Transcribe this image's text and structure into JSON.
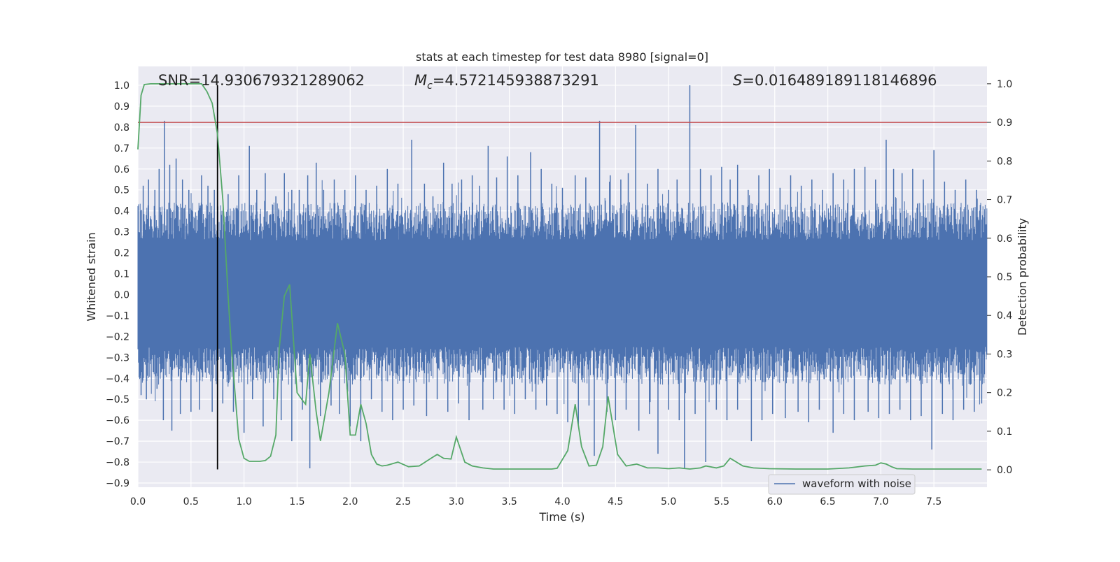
{
  "chart_data": {
    "type": "line",
    "title": "stats at each timestep for test data 8980 [signal=0]",
    "xlabel": "Time (s)",
    "ylabel_left": "Whitened strain",
    "ylabel_right": "Detection probability",
    "xlim": [
      0,
      8.0
    ],
    "ylim_left": [
      -0.92,
      1.09
    ],
    "ylim_right": [
      -0.045,
      1.045
    ],
    "x_ticks": [
      "0.0",
      "0.5",
      "1.0",
      "1.5",
      "2.0",
      "2.5",
      "3.0",
      "3.5",
      "4.0",
      "4.5",
      "5.0",
      "5.5",
      "6.0",
      "6.5",
      "7.0",
      "7.5"
    ],
    "y_ticks_left": [
      "1.0",
      "0.9",
      "0.8",
      "0.7",
      "0.6",
      "0.5",
      "0.4",
      "0.3",
      "0.2",
      "0.1",
      "0.0",
      "−0.1",
      "−0.2",
      "−0.3",
      "−0.4",
      "−0.5",
      "−0.6",
      "−0.7",
      "−0.8",
      "−0.9"
    ],
    "y_ticks_right": [
      "1.0",
      "0.9",
      "0.8",
      "0.7",
      "0.6",
      "0.5",
      "0.4",
      "0.3",
      "0.2",
      "0.1",
      "0.0"
    ],
    "annotations": {
      "snr": "SNR=14.930679321289062",
      "mc_symbol": "M",
      "mc_sub": "c",
      "mc_value": "=4.572145938873291",
      "s_symbol": "S",
      "s_value": "=0.016489189118146896"
    },
    "threshold": {
      "axis": "right",
      "value": 0.9,
      "color": "#c44e52"
    },
    "marker_time": 0.75,
    "marker_range_left": [
      -0.835,
      1.0
    ],
    "legend": {
      "label": "waveform with noise",
      "placement": "lower right"
    },
    "colors": {
      "waveform": "#4c72b0",
      "probability": "#55a868",
      "marker": "#000000",
      "background": "#eaeaf2",
      "grid": "#ffffff"
    },
    "grid": true,
    "series": [
      {
        "name": "waveform with noise",
        "axis": "left",
        "description_hidden": true,
        "band_upper": 0.44,
        "band_lower": -0.43,
        "spikes": [
          [
            0.05,
            0.52
          ],
          [
            0.1,
            0.55
          ],
          [
            0.16,
            0.5
          ],
          [
            0.2,
            0.6
          ],
          [
            0.25,
            0.83
          ],
          [
            0.3,
            0.62
          ],
          [
            0.36,
            0.65
          ],
          [
            0.42,
            0.55
          ],
          [
            0.48,
            0.5
          ],
          [
            0.6,
            0.57
          ],
          [
            0.66,
            0.52
          ],
          [
            0.72,
            0.5
          ],
          [
            0.85,
            0.48
          ],
          [
            0.95,
            0.57
          ],
          [
            1.05,
            0.71
          ],
          [
            1.12,
            0.5
          ],
          [
            1.2,
            0.58
          ],
          [
            1.3,
            0.47
          ],
          [
            1.38,
            0.58
          ],
          [
            1.45,
            0.5
          ],
          [
            1.52,
            0.5
          ],
          [
            1.6,
            0.57
          ],
          [
            1.68,
            0.63
          ],
          [
            1.75,
            0.5
          ],
          [
            1.85,
            0.55
          ],
          [
            1.95,
            0.5
          ],
          [
            2.05,
            0.57
          ],
          [
            2.15,
            0.5
          ],
          [
            2.25,
            0.52
          ],
          [
            2.35,
            0.6
          ],
          [
            2.45,
            0.53
          ],
          [
            2.58,
            0.74
          ],
          [
            2.7,
            0.53
          ],
          [
            2.78,
            0.47
          ],
          [
            2.88,
            0.63
          ],
          [
            2.96,
            0.53
          ],
          [
            3.05,
            0.55
          ],
          [
            3.15,
            0.57
          ],
          [
            3.22,
            0.52
          ],
          [
            3.3,
            0.71
          ],
          [
            3.38,
            0.56
          ],
          [
            3.48,
            0.66
          ],
          [
            3.58,
            0.57
          ],
          [
            3.7,
            0.68
          ],
          [
            3.8,
            0.6
          ],
          [
            3.9,
            0.53
          ],
          [
            4.0,
            0.51
          ],
          [
            4.12,
            0.57
          ],
          [
            4.22,
            0.56
          ],
          [
            4.35,
            0.83
          ],
          [
            4.45,
            0.57
          ],
          [
            4.55,
            0.55
          ],
          [
            4.62,
            0.58
          ],
          [
            4.69,
            0.81
          ],
          [
            4.8,
            0.53
          ],
          [
            4.9,
            0.6
          ],
          [
            5.0,
            0.5
          ],
          [
            5.08,
            0.55
          ],
          [
            5.2,
            1.0
          ],
          [
            5.3,
            0.6
          ],
          [
            5.4,
            0.57
          ],
          [
            5.5,
            0.61
          ],
          [
            5.58,
            0.55
          ],
          [
            5.65,
            0.62
          ],
          [
            5.75,
            0.5
          ],
          [
            5.85,
            0.57
          ],
          [
            5.95,
            0.6
          ],
          [
            6.05,
            0.51
          ],
          [
            6.15,
            0.57
          ],
          [
            6.25,
            0.52
          ],
          [
            6.35,
            0.55
          ],
          [
            6.45,
            0.5
          ],
          [
            6.55,
            0.58
          ],
          [
            6.65,
            0.55
          ],
          [
            6.75,
            0.6
          ],
          [
            6.85,
            0.61
          ],
          [
            6.95,
            0.55
          ],
          [
            7.05,
            0.74
          ],
          [
            7.12,
            0.6
          ],
          [
            7.2,
            0.58
          ],
          [
            7.3,
            0.6
          ],
          [
            7.4,
            0.55
          ],
          [
            7.5,
            0.69
          ],
          [
            7.6,
            0.54
          ],
          [
            7.7,
            0.5
          ],
          [
            7.8,
            0.55
          ],
          [
            7.9,
            0.5
          ],
          [
            0.03,
            -0.48
          ],
          [
            0.08,
            -0.5
          ],
          [
            0.18,
            -0.45
          ],
          [
            0.24,
            -0.6
          ],
          [
            0.32,
            -0.65
          ],
          [
            0.4,
            -0.57
          ],
          [
            0.5,
            -0.56
          ],
          [
            0.58,
            -0.55
          ],
          [
            0.7,
            -0.56
          ],
          [
            0.8,
            -0.52
          ],
          [
            0.9,
            -0.56
          ],
          [
            1.0,
            -0.66
          ],
          [
            1.08,
            -0.5
          ],
          [
            1.18,
            -0.63
          ],
          [
            1.28,
            -0.5
          ],
          [
            1.35,
            -0.6
          ],
          [
            1.45,
            -0.7
          ],
          [
            1.55,
            -0.55
          ],
          [
            1.62,
            -0.83
          ],
          [
            1.72,
            -0.58
          ],
          [
            1.82,
            -0.53
          ],
          [
            1.9,
            -0.57
          ],
          [
            2.0,
            -0.63
          ],
          [
            2.1,
            -0.7
          ],
          [
            2.2,
            -0.5
          ],
          [
            2.3,
            -0.56
          ],
          [
            2.4,
            -0.6
          ],
          [
            2.5,
            -0.55
          ],
          [
            2.6,
            -0.53
          ],
          [
            2.72,
            -0.58
          ],
          [
            2.82,
            -0.5
          ],
          [
            2.92,
            -0.56
          ],
          [
            3.02,
            -0.52
          ],
          [
            3.12,
            -0.6
          ],
          [
            3.25,
            -0.55
          ],
          [
            3.35,
            -0.5
          ],
          [
            3.45,
            -0.55
          ],
          [
            3.55,
            -0.57
          ],
          [
            3.65,
            -0.5
          ],
          [
            3.75,
            -0.55
          ],
          [
            3.85,
            -0.53
          ],
          [
            3.95,
            -0.57
          ],
          [
            4.05,
            -0.61
          ],
          [
            4.15,
            -0.63
          ],
          [
            4.25,
            -0.53
          ],
          [
            4.3,
            -0.77
          ],
          [
            4.42,
            -0.56
          ],
          [
            4.5,
            -0.6
          ],
          [
            4.6,
            -0.55
          ],
          [
            4.72,
            -0.65
          ],
          [
            4.82,
            -0.57
          ],
          [
            4.9,
            -0.76
          ],
          [
            5.0,
            -0.55
          ],
          [
            5.1,
            -0.6
          ],
          [
            5.15,
            -0.83
          ],
          [
            5.25,
            -0.57
          ],
          [
            5.35,
            -0.8
          ],
          [
            5.45,
            -0.55
          ],
          [
            5.55,
            -0.6
          ],
          [
            5.65,
            -0.55
          ],
          [
            5.78,
            -0.7
          ],
          [
            5.88,
            -0.6
          ],
          [
            5.98,
            -0.57
          ],
          [
            6.1,
            -0.59
          ],
          [
            6.22,
            -0.56
          ],
          [
            6.32,
            -0.61
          ],
          [
            6.42,
            -0.55
          ],
          [
            6.55,
            -0.66
          ],
          [
            6.65,
            -0.57
          ],
          [
            6.75,
            -0.6
          ],
          [
            6.88,
            -0.56
          ],
          [
            6.98,
            -0.59
          ],
          [
            7.08,
            -0.57
          ],
          [
            7.18,
            -0.55
          ],
          [
            7.28,
            -0.6
          ],
          [
            7.38,
            -0.58
          ],
          [
            7.48,
            -0.74
          ],
          [
            7.58,
            -0.57
          ],
          [
            7.68,
            -0.6
          ],
          [
            7.78,
            -0.55
          ],
          [
            7.88,
            -0.56
          ],
          [
            7.95,
            -0.52
          ]
        ]
      },
      {
        "name": "",
        "axis": "right",
        "x": [
          0.0,
          0.03,
          0.06,
          0.12,
          0.2,
          0.3,
          0.4,
          0.5,
          0.6,
          0.65,
          0.7,
          0.75,
          0.8,
          0.85,
          0.88,
          0.95,
          1.0,
          1.05,
          1.1,
          1.15,
          1.2,
          1.25,
          1.3,
          1.33,
          1.38,
          1.43,
          1.5,
          1.55,
          1.58,
          1.62,
          1.68,
          1.72,
          1.8,
          1.88,
          1.95,
          2.0,
          2.05,
          2.1,
          2.15,
          2.2,
          2.25,
          2.3,
          2.35,
          2.45,
          2.55,
          2.65,
          2.75,
          2.82,
          2.88,
          2.95,
          3.0,
          3.08,
          3.15,
          3.25,
          3.35,
          3.5,
          3.7,
          3.9,
          3.95,
          4.05,
          4.12,
          4.18,
          4.25,
          4.32,
          4.38,
          4.43,
          4.52,
          4.6,
          4.7,
          4.8,
          4.9,
          5.0,
          5.1,
          5.2,
          5.3,
          5.35,
          5.45,
          5.52,
          5.58,
          5.7,
          5.8,
          5.95,
          6.2,
          6.5,
          6.7,
          6.85,
          6.95,
          7.0,
          7.05,
          7.1,
          7.15,
          7.3,
          7.5,
          7.7,
          7.95
        ],
        "y": [
          0.83,
          0.97,
          0.998,
          1.0,
          1.0,
          1.0,
          1.0,
          1.0,
          1.0,
          0.98,
          0.95,
          0.87,
          0.7,
          0.45,
          0.32,
          0.08,
          0.03,
          0.022,
          0.022,
          0.022,
          0.024,
          0.035,
          0.09,
          0.31,
          0.45,
          0.48,
          0.2,
          0.18,
          0.17,
          0.3,
          0.15,
          0.075,
          0.2,
          0.38,
          0.3,
          0.09,
          0.09,
          0.17,
          0.12,
          0.04,
          0.015,
          0.01,
          0.012,
          0.02,
          0.008,
          0.01,
          0.028,
          0.04,
          0.03,
          0.028,
          0.085,
          0.02,
          0.01,
          0.005,
          0.002,
          0.002,
          0.002,
          0.002,
          0.004,
          0.05,
          0.17,
          0.06,
          0.01,
          0.012,
          0.06,
          0.19,
          0.04,
          0.01,
          0.015,
          0.005,
          0.005,
          0.003,
          0.005,
          0.002,
          0.005,
          0.01,
          0.005,
          0.01,
          0.03,
          0.01,
          0.005,
          0.003,
          0.002,
          0.002,
          0.005,
          0.01,
          0.012,
          0.018,
          0.015,
          0.008,
          0.003,
          0.002,
          0.002,
          0.002,
          0.002
        ]
      }
    ]
  }
}
